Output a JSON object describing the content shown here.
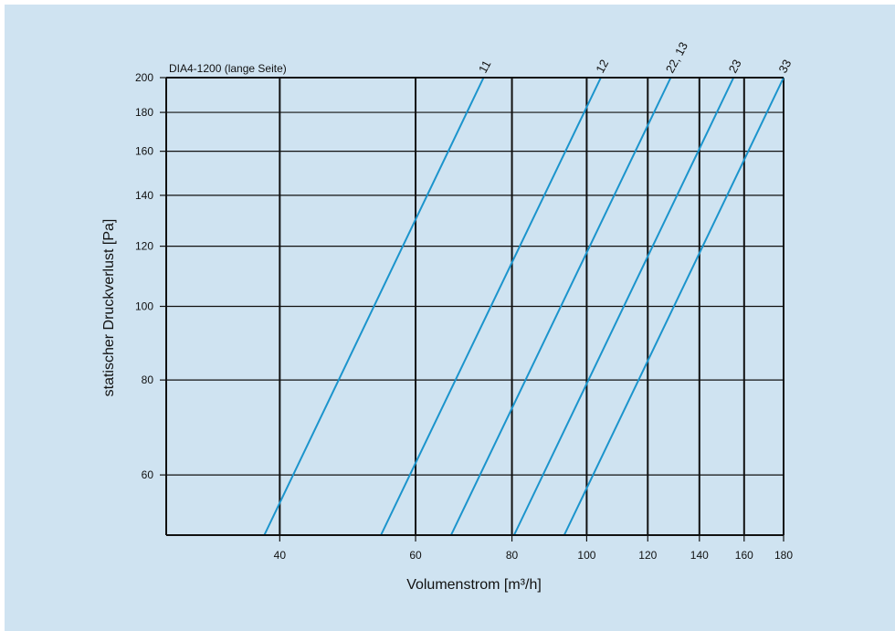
{
  "colors": {
    "background": "#cfe3f1",
    "curve": "#1b94cc",
    "grid": "#111111"
  },
  "chart_data": {
    "type": "line",
    "title": "DIA4-1200 (lange Seite)",
    "xlabel": "Volumenstrom [m³/h]",
    "ylabel": "statischer Druckverlust [Pa]",
    "x_scale": "log",
    "y_scale": "log",
    "xlim": [
      28.5,
      180
    ],
    "ylim": [
      50,
      200
    ],
    "x_ticks": [
      40,
      60,
      80,
      100,
      120,
      140,
      160,
      180
    ],
    "x_tick_labels": [
      "40",
      "60",
      "80",
      "100",
      "120",
      "140",
      "160",
      "180"
    ],
    "y_ticks": [
      60,
      80,
      100,
      120,
      140,
      160,
      180,
      200
    ],
    "y_tick_labels": [
      "60",
      "80",
      "100",
      "120",
      "140",
      "160",
      "180",
      "200"
    ],
    "grid": true,
    "series": [
      {
        "name": "11",
        "x": [
          38.2,
          73.5
        ],
        "y": [
          50,
          200
        ]
      },
      {
        "name": "12",
        "x": [
          54.1,
          104.3
        ],
        "y": [
          50,
          200
        ]
      },
      {
        "name": "22, 13",
        "x": [
          66.7,
          128.5
        ],
        "y": [
          50,
          200
        ]
      },
      {
        "name": "23",
        "x": [
          80.5,
          155.0
        ],
        "y": [
          50,
          200
        ]
      },
      {
        "name": "33",
        "x": [
          93.5,
          180.0
        ],
        "y": [
          50,
          200
        ]
      }
    ]
  }
}
